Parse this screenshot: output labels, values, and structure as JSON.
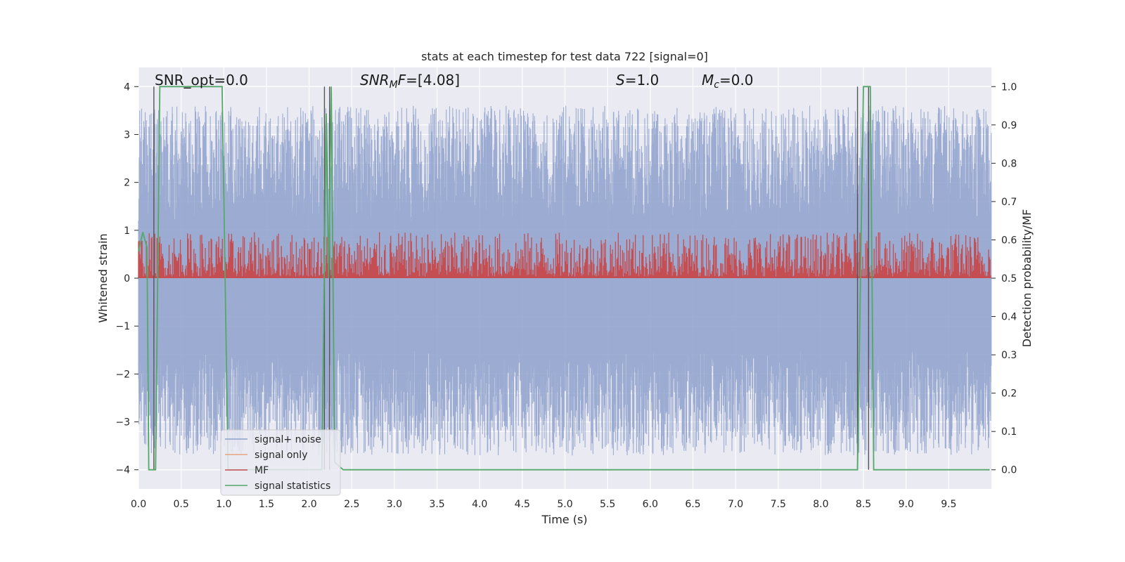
{
  "chart_data": {
    "type": "line",
    "title": "stats at each timestep for test data 722 [signal=0]",
    "xlabel": "Time (s)",
    "ylabel": "Whitened strain",
    "ylabel_right": "Detection probability/MF",
    "xlim": [
      0,
      10
    ],
    "ylim_left": [
      -4.4,
      4.4
    ],
    "ylim_right": [
      -0.05,
      1.05
    ],
    "x_ticks": [
      "0.0",
      "0.5",
      "1.0",
      "1.5",
      "2.0",
      "2.5",
      "3.0",
      "3.5",
      "4.0",
      "4.5",
      "5.0",
      "5.5",
      "6.0",
      "6.5",
      "7.0",
      "7.5",
      "8.0",
      "8.5",
      "9.0",
      "9.5"
    ],
    "x_tick_values": [
      0,
      0.5,
      1,
      1.5,
      2,
      2.5,
      3,
      3.5,
      4,
      4.5,
      5,
      5.5,
      6,
      6.5,
      7,
      7.5,
      8,
      8.5,
      9,
      9.5
    ],
    "y_ticks_left": [
      "4",
      "3",
      "2",
      "1",
      "0",
      "−1",
      "−2",
      "−3",
      "−4"
    ],
    "y_tick_values_left": [
      4,
      3,
      2,
      1,
      0,
      -1,
      -2,
      -3,
      -4
    ],
    "y_ticks_right": [
      "1.0",
      "0.9",
      "0.8",
      "0.7",
      "0.6",
      "0.5",
      "0.4",
      "0.3",
      "0.2",
      "0.1",
      "0.0"
    ],
    "y_tick_values_right": [
      1.0,
      0.9,
      0.8,
      0.7,
      0.6,
      0.5,
      0.4,
      0.3,
      0.2,
      0.1,
      0.0
    ],
    "grid": true,
    "legend_position": "lower-left",
    "annotations": {
      "snr_opt": "SNR_opt=0.0",
      "snr_mf_sym": "SNR",
      "snr_mf_sub": "M",
      "snr_mf_sym2": "F",
      "snr_mf_val": "=[4.08]",
      "s_sym": "S",
      "s_val": "=1.0",
      "mc_sym": "M",
      "mc_sub": "c",
      "mc_val": "=0.0"
    },
    "series": [
      {
        "name": "signal+ noise",
        "color": "#8da0cb",
        "axis": "left",
        "kind": "noise",
        "sample_rate": 500,
        "envelope_positive": [
          1.2,
          3.6
        ],
        "envelope_negative": [
          -1.5,
          -3.7
        ]
      },
      {
        "name": "signal only",
        "color": "#e8a47f",
        "axis": "left",
        "values": []
      },
      {
        "name": "MF",
        "color": "#c44e52",
        "axis": "right",
        "kind": "noise",
        "baseline": 0.5,
        "range": [
          0.5,
          0.62
        ]
      },
      {
        "name": "signal statistics",
        "color": "#55a868",
        "axis": "right",
        "x": [
          0.0,
          0.05,
          0.1,
          0.12,
          0.2,
          0.25,
          0.3,
          0.5,
          0.7,
          0.9,
          0.98,
          1.05,
          1.1,
          2.0,
          2.15,
          2.2,
          2.23,
          2.26,
          2.3,
          2.4,
          3.0,
          5.0,
          7.0,
          8.0,
          8.43,
          8.5,
          8.58,
          8.62,
          8.7,
          9.0,
          9.5,
          9.98
        ],
        "y": [
          0.57,
          0.62,
          0.58,
          0.0,
          0.0,
          1.0,
          1.0,
          1.0,
          1.0,
          1.0,
          1.0,
          0.0,
          0.0,
          0.0,
          0.0,
          0.93,
          0.5,
          1.0,
          0.02,
          0.0,
          0.0,
          0.0,
          0.0,
          0.0,
          0.0,
          1.0,
          1.0,
          0.0,
          0.0,
          0.0,
          0.0,
          0.0
        ]
      }
    ],
    "markers_x": [
      0.18,
      2.18,
      2.24,
      8.43,
      8.56
    ],
    "marker_color": "#555555"
  }
}
